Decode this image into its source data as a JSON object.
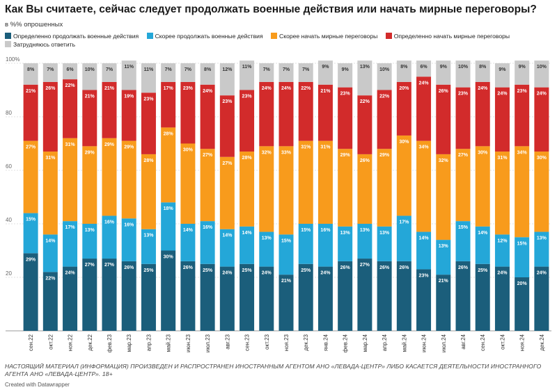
{
  "title": "Как Вы считаете, сейчас следует продолжать военные действия или начать мирные переговоры?",
  "subtitle": "в %% опрошенных",
  "footnote": "НАСТОЯЩИЙ МАТЕРИАЛ (ИНФОРМАЦИЯ) ПРОИЗВЕДЕН И РАСПРОСТРАНЕН ИНОСТРАННЫМ АГЕНТОМ АНО «ЛЕВАДА-ЦЕНТР» ЛИБО КАСАЕТСЯ ДЕЯТЕЛЬНОСТИ ИНОСТРАННОГО АГЕНТА АНО «ЛЕВАДА-ЦЕНТР». 18+",
  "credit": "Created with Datawrapper",
  "chart_data": {
    "type": "bar",
    "stacked": true,
    "title": "Как Вы считаете, сейчас следует продолжать военные действия или начать мирные переговоры?",
    "subtitle": "в %% опрошенных",
    "ylim": [
      0,
      100
    ],
    "yticks": [
      0,
      20,
      40,
      60,
      80,
      100
    ],
    "ytick_labels": [
      "",
      "20",
      "40",
      "60",
      "80",
      "100%"
    ],
    "grid": true,
    "legend_position": "top-left",
    "categories": [
      "сен.22",
      "окт.22",
      "ноя.22",
      "дек.22",
      "фев.23",
      "мар.23",
      "апр.23",
      "май.23",
      "июн.23",
      "июл.23",
      "авг.23",
      "сен.23",
      "окт.23",
      "ноя.23",
      "дек.23",
      "янв.24",
      "фев.24",
      "мар.24",
      "апр.24",
      "май.24",
      "июн.24",
      "июл.24",
      "авг.24",
      "сен.24",
      "окт.24",
      "ноя.24",
      "дек.24"
    ],
    "series": [
      {
        "name": "Определенно продолжать военные действия",
        "color": "#1b5e7b",
        "label_color": "#ffffff",
        "values": [
          29,
          22,
          24,
          27,
          27,
          26,
          25,
          30,
          26,
          25,
          24,
          25,
          24,
          21,
          25,
          24,
          26,
          27,
          26,
          26,
          23,
          21,
          26,
          25,
          24,
          20,
          24
        ]
      },
      {
        "name": "Скорее продолжать военные действия",
        "color": "#24a7d8",
        "label_color": "#ffffff",
        "values": [
          15,
          14,
          17,
          13,
          16,
          16,
          13,
          18,
          14,
          16,
          14,
          14,
          13,
          15,
          15,
          16,
          13,
          13,
          13,
          17,
          14,
          13,
          15,
          14,
          12,
          15,
          13
        ]
      },
      {
        "name": "Скорее начать мирные переговоры",
        "color": "#f89b1c",
        "label_color": "#ffffff",
        "values": [
          27,
          31,
          31,
          29,
          29,
          29,
          28,
          28,
          30,
          27,
          27,
          28,
          32,
          33,
          31,
          31,
          29,
          26,
          29,
          30,
          34,
          32,
          27,
          30,
          31,
          34,
          30
        ]
      },
      {
        "name": "Определенно начать мирные переговоры",
        "color": "#d22b2b",
        "label_color": "#ffffff",
        "values": [
          21,
          26,
          22,
          21,
          21,
          19,
          23,
          17,
          23,
          24,
          23,
          23,
          24,
          24,
          22,
          21,
          23,
          22,
          22,
          20,
          24,
          26,
          23,
          24,
          24,
          23,
          24
        ]
      },
      {
        "name": "Затрудняюсь ответить",
        "color": "#c9c9c9",
        "label_color": "#333333",
        "values": [
          8,
          7,
          6,
          10,
          7,
          11,
          11,
          7,
          7,
          8,
          12,
          11,
          7,
          7,
          7,
          9,
          9,
          13,
          10,
          8,
          6,
          9,
          10,
          8,
          9,
          9,
          10
        ]
      }
    ]
  }
}
